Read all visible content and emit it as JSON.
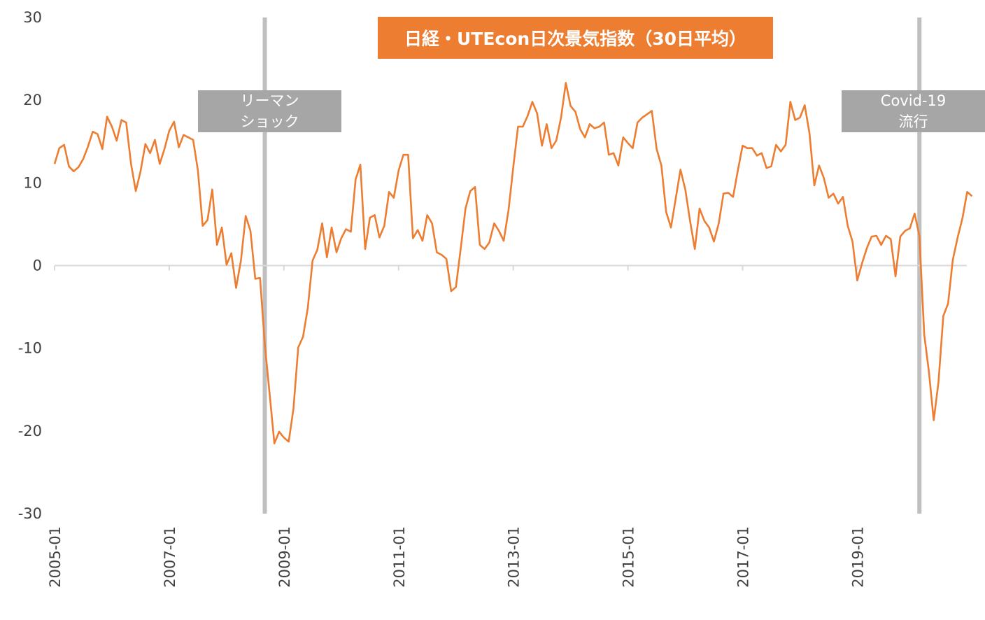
{
  "chart_data": {
    "type": "line",
    "title": "日経・UTEcon日次景気指数（30日平均）",
    "xlabel": "",
    "ylabel": "",
    "ylim": [
      -30,
      30
    ],
    "yticks": [
      30,
      20,
      10,
      0,
      -10,
      -20,
      -30
    ],
    "y_tick_labels": [
      "30",
      "20",
      "10",
      "0",
      "-10",
      "-20",
      "-30"
    ],
    "x_tick_labels": [
      "2005-01",
      "2007-01",
      "2009-01",
      "2011-01",
      "2013-01",
      "2015-01",
      "2017-01",
      "2019-01"
    ],
    "x_start": "2005-01",
    "x_end": "2020-12",
    "grid": false,
    "line_color": "#ED7D31",
    "event_line_color": "#BFBFBF",
    "events": [
      {
        "date": "2008-09",
        "label_lines": [
          "リーマン",
          "ショック"
        ]
      },
      {
        "date": "2020-02",
        "label_lines": [
          "Covid-19",
          "流行"
        ]
      }
    ],
    "series": [
      {
        "values": [
          12.3,
          14.2,
          14.6,
          12.0,
          11.4,
          11.9,
          12.9,
          14.4,
          16.2,
          15.9,
          14.1,
          18.0,
          16.8,
          15.1,
          17.6,
          17.3,
          12.3,
          9.0,
          11.4,
          14.7,
          13.6,
          15.2,
          12.3,
          14.1,
          16.3,
          17.4,
          14.3,
          15.8,
          15.5,
          15.2,
          11.5,
          4.8,
          5.5,
          9.2,
          2.5,
          4.6,
          0.1,
          1.5,
          -2.7,
          0.6,
          6.0,
          4.2,
          -1.6,
          -1.5,
          -9.5,
          -15.5,
          -21.5,
          -20.1,
          -20.8,
          -21.3,
          -17.3,
          -9.9,
          -8.6,
          -5.1,
          0.6,
          1.9,
          5.1,
          1.0,
          4.6,
          1.6,
          3.3,
          4.4,
          4.1,
          10.4,
          12.2,
          2.0,
          5.8,
          6.1,
          3.4,
          4.8,
          8.9,
          8.2,
          11.5,
          13.4,
          13.4,
          3.3,
          4.3,
          3.0,
          6.1,
          5.1,
          1.6,
          1.3,
          0.8,
          -3.1,
          -2.6,
          2.0,
          6.9,
          9.0,
          9.5,
          2.5,
          2.0,
          2.8,
          5.1,
          4.2,
          3.0,
          6.7,
          11.9,
          16.8,
          16.8,
          18.1,
          19.8,
          18.4,
          14.5,
          17.1,
          14.2,
          15.1,
          17.9,
          22.1,
          19.3,
          18.6,
          16.5,
          15.5,
          17.1,
          16.6,
          16.8,
          17.3,
          13.4,
          13.6,
          12.1,
          15.5,
          14.8,
          14.2,
          17.3,
          17.9,
          18.3,
          18.7,
          14.1,
          12.1,
          6.5,
          4.6,
          8.1,
          11.6,
          9.2,
          5.4,
          2.0,
          6.9,
          5.4,
          4.6,
          2.9,
          5.1,
          8.7,
          8.8,
          8.3,
          11.5,
          14.5,
          14.2,
          14.2,
          13.3,
          13.6,
          11.8,
          12.0,
          14.6,
          13.8,
          14.6,
          19.8,
          17.6,
          17.9,
          19.4,
          16.0,
          9.7,
          12.1,
          10.6,
          8.2,
          8.7,
          7.5,
          8.3,
          4.8,
          2.9,
          -1.8,
          0.3,
          2.1,
          3.5,
          3.6,
          2.5,
          3.6,
          3.2,
          -1.3,
          3.5,
          4.2,
          4.5,
          6.3,
          3.6,
          -8.3,
          -12.9,
          -18.7,
          -14.1,
          -6.1,
          -4.6,
          0.7,
          3.4,
          5.7,
          8.9,
          8.4
        ]
      }
    ]
  }
}
